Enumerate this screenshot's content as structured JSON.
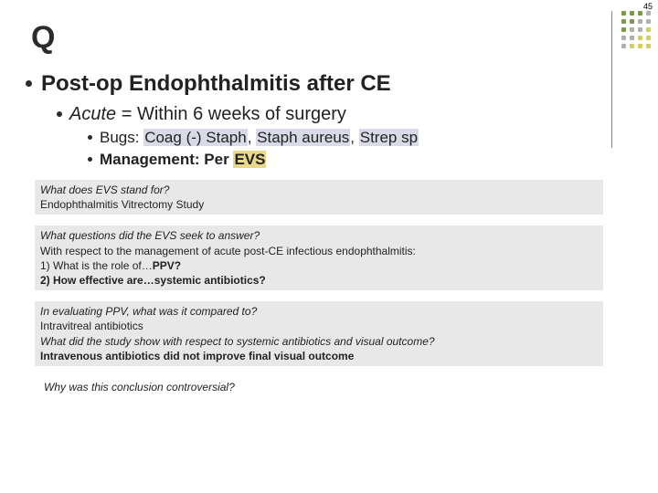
{
  "slideNumber": "45",
  "title": "Q",
  "heading": "Post-op Endophthalmitis after CE",
  "sub1_pre": "Acute",
  "sub1_post": " = Within 6 weeks of surgery",
  "bugs_label": "Bugs: ",
  "bugs_1": "Coag (-) Staph",
  "bugs_sep1": ", ",
  "bugs_2": "Staph aureus",
  "bugs_sep2": ", ",
  "bugs_3": "Strep sp",
  "mgmt_label": "Management: Per ",
  "mgmt_hl": "EVS",
  "box1_q": "What does EVS stand for?",
  "box1_a": "Endophthalmitis Vitrectomy Study",
  "box2_q": "What questions did the EVS seek to answer?",
  "box2_intro": "With respect to the management of acute post-CE infectious endophthalmitis:",
  "box2_l1a": "1) What is the role of…",
  "box2_l1b": "PPV?",
  "box2_l2a": "2) How effective are…",
  "box2_l2b": "systemic antibiotics?",
  "box3_q1": "In evaluating PPV, what was it compared to?",
  "box3_a1": "Intravitreal antibiotics",
  "box3_q2": "What did the study show with respect to systemic antibiotics and visual outcome?",
  "box3_a2": "Intravenous antibiotics did not improve final visual outcome",
  "finalQ": "Why was this conclusion controversial?",
  "deco_colors": [
    "#7a9a4a",
    "#7a9a4a",
    "#7a9a4a",
    "#b0b0b0",
    "#7a9a4a",
    "#7a9a4a",
    "#b0b0b0",
    "#b0b0b0",
    "#7a9a4a",
    "#b0b0b0",
    "#b0b0b0",
    "#d4cf5a",
    "#b0b0b0",
    "#b0b0b0",
    "#d4cf5a",
    "#d4cf5a",
    "#b0b0b0",
    "#d4cf5a",
    "#d4cf5a",
    "#d4cf5a"
  ]
}
